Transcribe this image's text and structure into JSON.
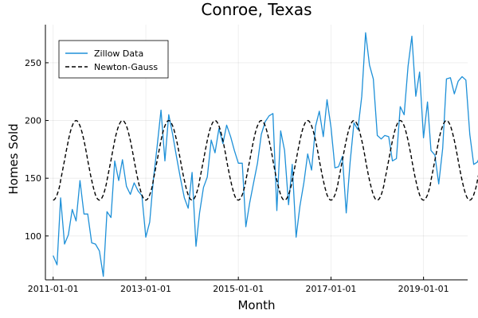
{
  "chart_data": {
    "type": "line",
    "title": "Conroe, Texas",
    "xlabel": "Month",
    "ylabel": "Homes Sold",
    "x_range": [
      "2010-11-01",
      "2019-12-15"
    ],
    "ylim": [
      62,
      283
    ],
    "x_ticks": [
      "2011-01-01",
      "2013-01-01",
      "2015-01-01",
      "2017-01-01",
      "2019-01-01"
    ],
    "y_ticks": [
      100,
      150,
      200,
      250
    ],
    "grid": true,
    "legend_position": "top-left",
    "start_month": "2011-01",
    "series": [
      {
        "name": "Zillow Data",
        "color": "#1e90d8",
        "style": "solid",
        "values": [
          83,
          75,
          133,
          93,
          101,
          123,
          113,
          148,
          119,
          119,
          94,
          93,
          87,
          65,
          121,
          116,
          165,
          148,
          166,
          143,
          136,
          146,
          139,
          135,
          99,
          112,
          148,
          178,
          209,
          165,
          205,
          188,
          168,
          150,
          133,
          124,
          155,
          91,
          120,
          142,
          151,
          183,
          172,
          193,
          180,
          196,
          186,
          174,
          163,
          163,
          108,
          129,
          146,
          163,
          188,
          199,
          204,
          206,
          122,
          191,
          174,
          127,
          162,
          99,
          126,
          146,
          171,
          157,
          195,
          208,
          186,
          218,
          194,
          159,
          160,
          169,
          120,
          164,
          198,
          192,
          221,
          276,
          248,
          236,
          187,
          184,
          187,
          186,
          165,
          167,
          212,
          205,
          247,
          273,
          221,
          242,
          185,
          216,
          174,
          170,
          145,
          176,
          236,
          237,
          223,
          234,
          238,
          235,
          188,
          162,
          164,
          172,
          176,
          126
        ]
      },
      {
        "name": "Newton-Gauss",
        "color": "#000000",
        "style": "dashed",
        "mean": 165.5,
        "amplitude": 34.5,
        "period_months": 12,
        "peak_month": 7
      }
    ]
  }
}
